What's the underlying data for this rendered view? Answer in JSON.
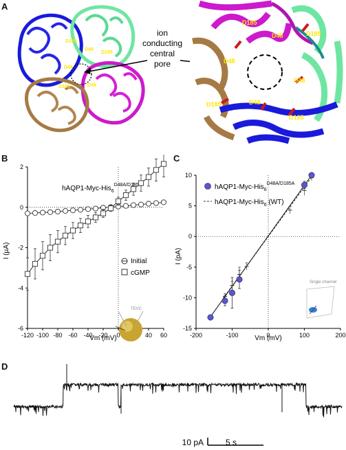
{
  "panels": {
    "a": "A",
    "b": "B",
    "c": "C",
    "d": "D"
  },
  "panel_a": {
    "pore_label": [
      "ion",
      "conducting",
      "central",
      "pore"
    ],
    "left_residue_labels": [
      "D185",
      "D48",
      "D48",
      "D185",
      "D48",
      "D185"
    ],
    "right_residue_labels": [
      "D185",
      "D48",
      "D185",
      "D48",
      "D48",
      "D48",
      "D185",
      "D185"
    ]
  },
  "chart_data": [
    {
      "type": "line",
      "panel": "B",
      "title_parts": {
        "base": "hAQP1-Myc-His",
        "sub": "6",
        "sup": "D48A/D185A"
      },
      "xlabel": "Vm (mV)",
      "ylabel": "I (µA)",
      "xlim": [
        -120,
        60
      ],
      "ylim": [
        -6,
        2
      ],
      "xticks": [
        "-120",
        "-100",
        "-80",
        "-60",
        "-40",
        "-20",
        "0",
        "20",
        "40",
        "60"
      ],
      "yticks": [
        "-6",
        "-4",
        "-2",
        "0",
        "2"
      ],
      "x": [
        -120,
        -110,
        -100,
        -90,
        -80,
        -70,
        -60,
        -50,
        -40,
        -30,
        -20,
        -10,
        0,
        10,
        20,
        30,
        40,
        50,
        60
      ],
      "series": [
        {
          "name": "Initial",
          "marker": "circle",
          "values": [
            -0.3,
            -0.28,
            -0.26,
            -0.24,
            -0.21,
            -0.18,
            -0.15,
            -0.12,
            -0.09,
            -0.06,
            -0.02,
            0.01,
            0.04,
            0.07,
            0.11,
            0.14,
            0.18,
            0.21,
            0.25
          ],
          "errors": [
            0.05,
            0.05,
            0.05,
            0.05,
            0.05,
            0.05,
            0.05,
            0.05,
            0.05,
            0.05,
            0.05,
            0.05,
            0.05,
            0.05,
            0.05,
            0.05,
            0.05,
            0.05,
            0.05
          ]
        },
        {
          "name": "cGMP",
          "marker": "square",
          "values": [
            -3.3,
            -2.8,
            -2.4,
            -2.0,
            -1.7,
            -1.4,
            -1.15,
            -0.9,
            -0.7,
            -0.5,
            -0.3,
            -0.05,
            0.3,
            0.6,
            0.9,
            1.2,
            1.5,
            1.85,
            2.15
          ],
          "errors": [
            0.8,
            0.75,
            0.7,
            0.65,
            0.55,
            0.45,
            0.4,
            0.35,
            0.3,
            0.25,
            0.2,
            0.15,
            0.2,
            0.25,
            0.3,
            0.4,
            0.45,
            0.55,
            0.65
          ]
        }
      ],
      "legend": "right",
      "grid": false,
      "inset_label": "TEVC"
    },
    {
      "type": "scatter",
      "panel": "C",
      "xlabel": "Vm (mV)",
      "ylabel": "I (pA)",
      "xlim": [
        -200,
        200
      ],
      "ylim": [
        -15,
        10
      ],
      "xticks": [
        "-200",
        "-100",
        "0",
        "100",
        "200"
      ],
      "yticks": [
        "-15",
        "-10",
        "-5",
        "0",
        "5",
        "10"
      ],
      "series": [
        {
          "name_parts": {
            "base": "hAQP1-Myc-His",
            "sub": "6",
            "sup": "D48A/D185A"
          },
          "marker": "filled-circle",
          "color": "#5a55d8",
          "x": [
            -160,
            -120,
            -100,
            -80,
            100,
            120
          ],
          "y": [
            -13.2,
            -10.5,
            -9.2,
            -7.0,
            8.4,
            10.0
          ],
          "errors": [
            0.3,
            0.8,
            2.5,
            1.5,
            0.6,
            0.3
          ]
        },
        {
          "name_parts": {
            "base": "hAQP1-Myc-His",
            "sub": "6",
            "suffix": " (WT)"
          },
          "marker": "minus",
          "line": "dashed",
          "x": [
            -120,
            -100,
            -80,
            -60,
            60,
            100,
            120
          ],
          "y": [
            -9.8,
            -8.0,
            -6.2,
            -4.9,
            4.3,
            7.5,
            9.6
          ],
          "errors": [
            0.5,
            0.7,
            1.2,
            0.6,
            0.6,
            0.8,
            0.5
          ]
        }
      ],
      "legend": "top-left",
      "grid": false,
      "inset_label": "Single channel"
    }
  ],
  "panel_d": {
    "scale_current": "10 pA",
    "scale_time": "5 s"
  }
}
